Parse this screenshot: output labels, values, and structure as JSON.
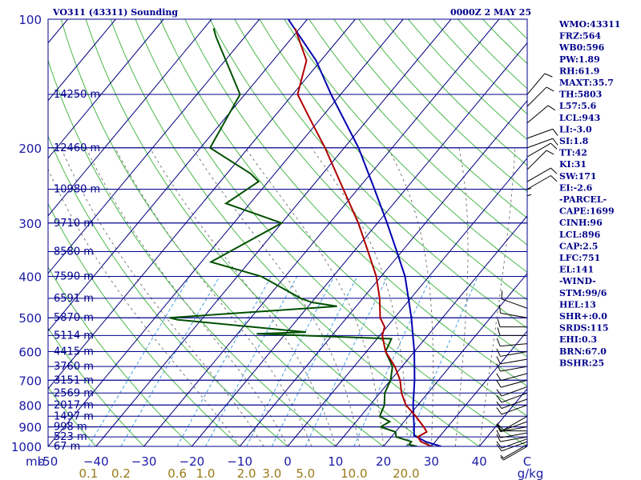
{
  "header": {
    "title": "VO311 (43311) Sounding",
    "time": "0000Z  2 MAY 25"
  },
  "sidebar": {
    "stats": [
      "WMO:43311",
      "FRZ:564",
      "WB0:596",
      "PW:1.89",
      "RH:61.9",
      "MAXT:35.7",
      "TH:5803",
      "L57:5.6",
      "LCL:943",
      "LI:-3.0",
      "SI:1.8",
      "TT:42",
      "KI:31",
      "SW:171",
      "EI:-2.6",
      "-PARCEL-",
      "CAPE:1699",
      "CINH:96",
      "LCL:896",
      "CAP:2.5",
      "LFC:751",
      "EL:141",
      "-WIND-",
      "STM:99/6",
      "HEL:13",
      "SHR+:0.0",
      "SRDS:115",
      "EHI:0.3",
      "BRN:67.0",
      "BSHR:25"
    ]
  },
  "chart_data": {
    "type": "skew-t",
    "pressure_axis_label": "mb",
    "pressure_ticks": [
      100,
      200,
      300,
      400,
      500,
      600,
      700,
      800,
      900,
      1000
    ],
    "pressure_range": [
      1000,
      100
    ],
    "temperature_ticks": [
      -50,
      -40,
      -30,
      -20,
      -10,
      0,
      10,
      20,
      30,
      40
    ],
    "temperature_tick_labels": [
      "-50",
      "−40",
      "−30",
      "−20",
      "−10",
      "0",
      "10",
      "20",
      "30",
      "40"
    ],
    "temperature_axis_end_label": "C",
    "temperature_range": [
      -50,
      50
    ],
    "mixing_ratio_ticks": [
      0.1,
      0.2,
      0.6,
      1.0,
      2.0,
      3.0,
      5.0,
      10.0,
      20.0
    ],
    "mixing_ratio_tick_labels": [
      "0.1",
      "0.2",
      "0.6",
      "1.0",
      "2.0",
      "3.0",
      "5.0",
      "10.0",
      "20.0"
    ],
    "mixing_ratio_unit": "g/kg",
    "height_labels": [
      {
        "p": 150,
        "label": "14250 m"
      },
      {
        "p": 200,
        "label": "12460 m"
      },
      {
        "p": 250,
        "label": "10980 m"
      },
      {
        "p": 300,
        "label": "9710 m"
      },
      {
        "p": 350,
        "label": "8580 m"
      },
      {
        "p": 400,
        "label": "7590 m"
      },
      {
        "p": 450,
        "label": "6591 m"
      },
      {
        "p": 500,
        "label": "5870 m"
      },
      {
        "p": 550,
        "label": "5114 m"
      },
      {
        "p": 600,
        "label": "4415 m"
      },
      {
        "p": 650,
        "label": "3760 m"
      },
      {
        "p": 700,
        "label": "3151 m"
      },
      {
        "p": 750,
        "label": "2569 m"
      },
      {
        "p": 800,
        "label": "2017 m"
      },
      {
        "p": 850,
        "label": "1497 m"
      },
      {
        "p": 900,
        "label": "998 m"
      },
      {
        "p": 950,
        "label": "523 m"
      },
      {
        "p": 1000,
        "label": "67 m"
      }
    ],
    "temperature_profile": [
      {
        "p": 1000,
        "t": 30
      },
      {
        "p": 975,
        "t": 27
      },
      {
        "p": 950,
        "t": 25.5
      },
      {
        "p": 925,
        "t": 26.5
      },
      {
        "p": 900,
        "t": 25
      },
      {
        "p": 850,
        "t": 21.5
      },
      {
        "p": 800,
        "t": 17.5
      },
      {
        "p": 750,
        "t": 14.5
      },
      {
        "p": 700,
        "t": 12
      },
      {
        "p": 650,
        "t": 8.5
      },
      {
        "p": 600,
        "t": 4
      },
      {
        "p": 550,
        "t": 0.5
      },
      {
        "p": 525,
        "t": -0.5
      },
      {
        "p": 500,
        "t": -3
      },
      {
        "p": 450,
        "t": -6.5
      },
      {
        "p": 400,
        "t": -11
      },
      {
        "p": 350,
        "t": -17
      },
      {
        "p": 300,
        "t": -24
      },
      {
        "p": 250,
        "t": -33
      },
      {
        "p": 200,
        "t": -44
      },
      {
        "p": 175,
        "t": -51
      },
      {
        "p": 150,
        "t": -59
      },
      {
        "p": 125,
        "t": -63
      },
      {
        "p": 105,
        "t": -71
      }
    ],
    "dewpoint_profile": [
      {
        "p": 1000,
        "t": 27
      },
      {
        "p": 990,
        "t": 25
      },
      {
        "p": 975,
        "t": 25
      },
      {
        "p": 950,
        "t": 21
      },
      {
        "p": 925,
        "t": 20
      },
      {
        "p": 900,
        "t": 16
      },
      {
        "p": 875,
        "t": 17
      },
      {
        "p": 850,
        "t": 14
      },
      {
        "p": 800,
        "t": 13
      },
      {
        "p": 750,
        "t": 11
      },
      {
        "p": 700,
        "t": 10
      },
      {
        "p": 650,
        "t": 8
      },
      {
        "p": 600,
        "t": 4
      },
      {
        "p": 560,
        "t": 3
      },
      {
        "p": 545,
        "t": -26
      },
      {
        "p": 540,
        "t": -16
      },
      {
        "p": 505,
        "t": -45
      },
      {
        "p": 500,
        "t": -47
      },
      {
        "p": 470,
        "t": -14
      },
      {
        "p": 460,
        "t": -20
      },
      {
        "p": 450,
        "t": -23
      },
      {
        "p": 400,
        "t": -35
      },
      {
        "p": 370,
        "t": -48
      },
      {
        "p": 300,
        "t": -40
      },
      {
        "p": 270,
        "t": -55
      },
      {
        "p": 240,
        "t": -52
      },
      {
        "p": 230,
        "t": -55
      },
      {
        "p": 200,
        "t": -68
      },
      {
        "p": 150,
        "t": -71
      },
      {
        "p": 110,
        "t": -86
      },
      {
        "p": 105,
        "t": -88
      }
    ],
    "parcel_profile": [
      {
        "p": 1000,
        "t": 32
      },
      {
        "p": 975,
        "t": 28
      },
      {
        "p": 943,
        "t": 24.5
      },
      {
        "p": 900,
        "t": 23
      },
      {
        "p": 800,
        "t": 19
      },
      {
        "p": 700,
        "t": 15
      },
      {
        "p": 600,
        "t": 10
      },
      {
        "p": 500,
        "t": 3.5
      },
      {
        "p": 450,
        "t": -0.5
      },
      {
        "p": 400,
        "t": -5
      },
      {
        "p": 350,
        "t": -11
      },
      {
        "p": 300,
        "t": -18
      },
      {
        "p": 250,
        "t": -26.5
      },
      {
        "p": 200,
        "t": -37
      },
      {
        "p": 150,
        "t": -52
      },
      {
        "p": 125,
        "t": -61
      },
      {
        "p": 100,
        "t": -74
      }
    ],
    "wind_barbs": [
      {
        "p": 1000,
        "dir": 240,
        "kt": 5
      },
      {
        "p": 990,
        "dir": 240,
        "kt": 5
      },
      {
        "p": 975,
        "dir": 250,
        "kt": 10
      },
      {
        "p": 960,
        "dir": 250,
        "kt": 10
      },
      {
        "p": 950,
        "dir": 260,
        "kt": 10
      },
      {
        "p": 930,
        "dir": 260,
        "kt": 10
      },
      {
        "p": 920,
        "dir": 270,
        "kt": 10
      },
      {
        "p": 900,
        "dir": 260,
        "kt": 10
      },
      {
        "p": 875,
        "dir": 250,
        "kt": 10
      },
      {
        "p": 850,
        "dir": 240,
        "kt": 10
      },
      {
        "p": 800,
        "dir": 250,
        "kt": 10
      },
      {
        "p": 775,
        "dir": 250,
        "kt": 10
      },
      {
        "p": 750,
        "dir": 250,
        "kt": 10
      },
      {
        "p": 725,
        "dir": 250,
        "kt": 10
      },
      {
        "p": 700,
        "dir": 255,
        "kt": 10
      },
      {
        "p": 675,
        "dir": 255,
        "kt": 10
      },
      {
        "p": 650,
        "dir": 260,
        "kt": 10
      },
      {
        "p": 625,
        "dir": 260,
        "kt": 10
      },
      {
        "p": 600,
        "dir": 260,
        "kt": 10
      },
      {
        "p": 575,
        "dir": 265,
        "kt": 10
      },
      {
        "p": 550,
        "dir": 270,
        "kt": 10
      },
      {
        "p": 525,
        "dir": 270,
        "kt": 10
      },
      {
        "p": 500,
        "dir": 280,
        "kt": 10
      },
      {
        "p": 475,
        "dir": 290,
        "kt": 10
      },
      {
        "p": 300,
        "dir": 0,
        "kt": 5
      },
      {
        "p": 290,
        "dir": 0,
        "kt": 5
      },
      {
        "p": 250,
        "dir": 60,
        "kt": 10
      },
      {
        "p": 240,
        "dir": 60,
        "kt": 10
      },
      {
        "p": 225,
        "dir": 45,
        "kt": 10
      },
      {
        "p": 210,
        "dir": 60,
        "kt": 10
      },
      {
        "p": 200,
        "dir": 70,
        "kt": 10
      },
      {
        "p": 190,
        "dir": 70,
        "kt": 10
      },
      {
        "p": 175,
        "dir": 50,
        "kt": 10
      },
      {
        "p": 160,
        "dir": 45,
        "kt": 10
      },
      {
        "p": 150,
        "dir": 40,
        "kt": 10
      }
    ],
    "colors": {
      "background": "#ffffff",
      "frame": "#00008b",
      "isobar": "#00008b",
      "isotherm": "#000080",
      "dry_adiabat": "#4ab84a",
      "moist_adiabat": "#7a7a7a",
      "mixing_ratio": "#46a0e0",
      "temperature": "#b00000",
      "dewpoint": "#005000",
      "parcel": "#0000b0",
      "text": "#00008b",
      "mixing_label": "#9a7a18",
      "wind": "#000000"
    }
  }
}
